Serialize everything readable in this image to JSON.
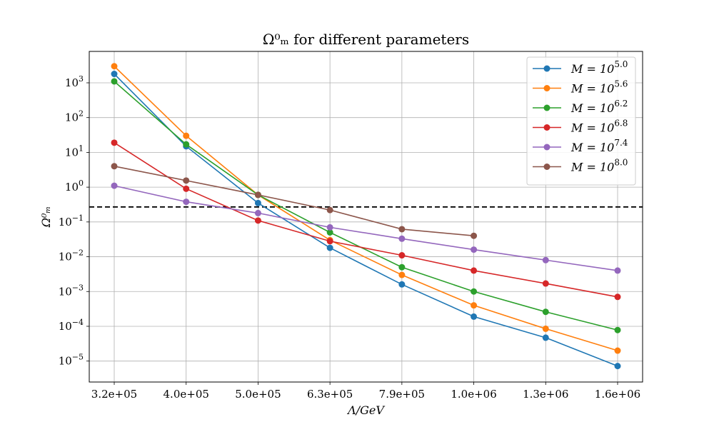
{
  "chart_data": {
    "type": "line",
    "title": "Ω⁰ₘ for different parameters",
    "xlabel": "Λ/GeV",
    "ylabel": "Ω⁰ₘ",
    "yscale": "log",
    "ylim": [
      2.5e-06,
      8000
    ],
    "grid": true,
    "legend_position": "top-right",
    "x_tick_labels": [
      "3.2e+05",
      "4.0e+05",
      "5.0e+05",
      "6.3e+05",
      "7.9e+05",
      "1.0e+06",
      "1.3e+06",
      "1.6e+06"
    ],
    "y_ticks": [
      {
        "value": 1e-05,
        "base": "10",
        "exp": "−5"
      },
      {
        "value": 0.0001,
        "base": "10",
        "exp": "−4"
      },
      {
        "value": 0.001,
        "base": "10",
        "exp": "−3"
      },
      {
        "value": 0.01,
        "base": "10",
        "exp": "−2"
      },
      {
        "value": 0.1,
        "base": "10",
        "exp": "−1"
      },
      {
        "value": 1,
        "base": "10",
        "exp": "0"
      },
      {
        "value": 10,
        "base": "10",
        "exp": "1"
      },
      {
        "value": 100,
        "base": "10",
        "exp": "2"
      },
      {
        "value": 1000,
        "base": "10",
        "exp": "3"
      }
    ],
    "reference_line": {
      "y": 0.27,
      "style": "dashed",
      "color": "#000000"
    },
    "series": [
      {
        "name": "M = 10^5.0",
        "legend_prefix": "M = 10",
        "legend_exp": "5.0",
        "color": "#1f77b4",
        "values": [
          1800,
          15,
          0.35,
          0.018,
          0.0016,
          0.00019,
          4.7e-05,
          7.2e-06
        ]
      },
      {
        "name": "M = 10^5.6",
        "legend_prefix": "M = 10",
        "legend_exp": "5.6",
        "color": "#ff7f0e",
        "values": [
          3000,
          30,
          0.6,
          0.03,
          0.003,
          0.0004,
          8.5e-05,
          2e-05
        ]
      },
      {
        "name": "M = 10^6.2",
        "legend_prefix": "M = 10",
        "legend_exp": "6.2",
        "color": "#2ca02c",
        "values": [
          1100,
          17,
          0.6,
          0.05,
          0.005,
          0.001,
          0.00026,
          7.8e-05
        ]
      },
      {
        "name": "M = 10^6.8",
        "legend_prefix": "M = 10",
        "legend_exp": "6.8",
        "color": "#d62728",
        "values": [
          19,
          0.9,
          0.11,
          0.028,
          0.011,
          0.004,
          0.0017,
          0.0007
        ]
      },
      {
        "name": "M = 10^7.4",
        "legend_prefix": "M = 10",
        "legend_exp": "7.4",
        "color": "#9467bd",
        "values": [
          1.1,
          0.38,
          0.18,
          0.07,
          0.033,
          0.016,
          0.008,
          0.004
        ]
      },
      {
        "name": "M = 10^8.0",
        "legend_prefix": "M = 10",
        "legend_exp": "8.0",
        "color": "#8c564b",
        "values": [
          4,
          1.55,
          0.6,
          0.22,
          0.062,
          0.04,
          null,
          null
        ]
      }
    ]
  }
}
